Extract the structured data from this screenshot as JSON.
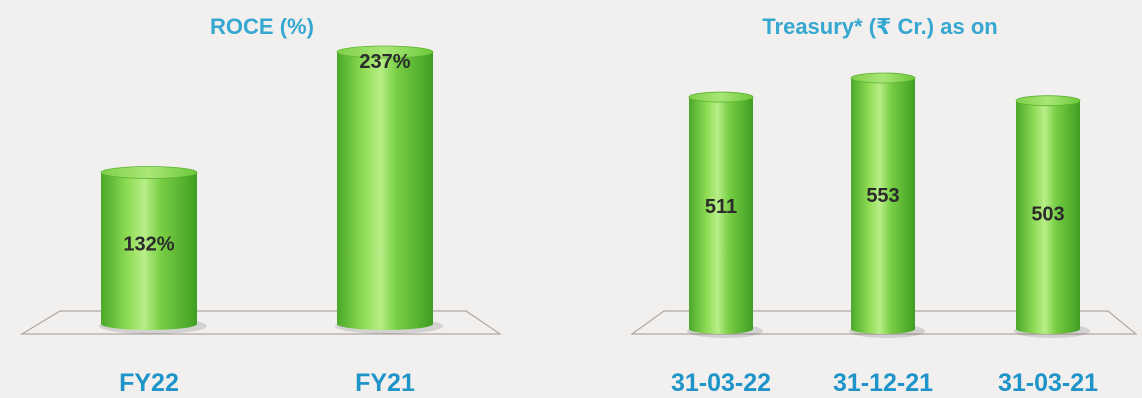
{
  "chart_data": [
    {
      "type": "bar",
      "title": "ROCE (%)",
      "categories": [
        "FY22",
        "FY21"
      ],
      "values": [
        132,
        237
      ],
      "value_labels": [
        "132%",
        "237%"
      ],
      "unit": "%",
      "ylim": [
        0,
        237
      ]
    },
    {
      "type": "bar",
      "title": "Treasury* (₹ Cr.) as on",
      "categories": [
        "31-03-22",
        "31-12-21",
        "31-03-21"
      ],
      "values": [
        511,
        553,
        503
      ],
      "value_labels": [
        "511",
        "553",
        "503"
      ],
      "ylim": [
        0,
        553
      ]
    }
  ],
  "colors": {
    "bar_body": "#6cc83a",
    "bar_highlight": "#c6f09a",
    "bar_shadow": "#3f9e22",
    "title": "#36a7d0",
    "category_label": "#1f94c9",
    "value_label": "#2b2b2b",
    "floor_outline": "#b4a6a0"
  }
}
